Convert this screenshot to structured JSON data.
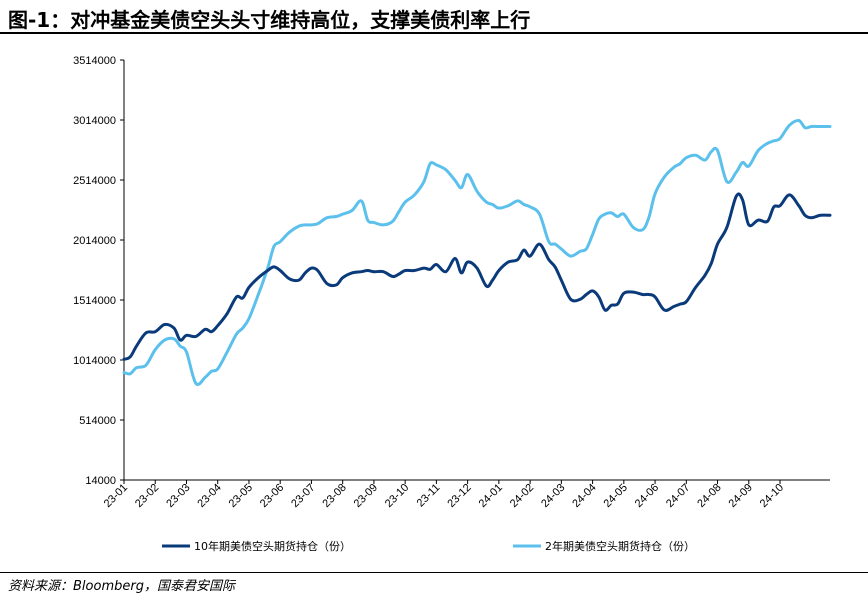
{
  "title": "图-1：对冲基金美债空头头寸维持高位，支撑美债利率上行",
  "source": "资料来源：Bloomberg，国泰君安国际",
  "chart_data": {
    "type": "line",
    "title": "图-1：对冲基金美债空头头寸维持高位，支撑美债利率上行",
    "ylim": [
      14000,
      3514000
    ],
    "yticks": [
      14000,
      514000,
      1014000,
      1514000,
      2014000,
      2514000,
      3014000,
      3514000
    ],
    "categories": [
      "23-01",
      "23-02",
      "23-03",
      "23-04",
      "23-05",
      "23-06",
      "23-07",
      "23-08",
      "23-09",
      "23-10",
      "23-11",
      "23-12",
      "24-01",
      "24-02",
      "24-03",
      "24-04",
      "24-05",
      "24-06",
      "24-07",
      "24-08",
      "24-09",
      "24-10"
    ],
    "x_end": 22.6,
    "grid": false,
    "legend": "bottom",
    "series": [
      {
        "name": "10年期美债空头期货持仓（份）",
        "color": "#0a3a7a",
        "x": [
          0,
          0.2,
          0.4,
          0.7,
          1,
          1.3,
          1.6,
          1.8,
          2,
          2.3,
          2.6,
          2.8,
          3,
          3.3,
          3.6,
          3.8,
          4,
          4.3,
          4.6,
          4.8,
          5,
          5.3,
          5.6,
          5.8,
          6,
          6.2,
          6.5,
          6.8,
          7,
          7.3,
          7.6,
          7.8,
          8,
          8.3,
          8.6,
          8.8,
          9,
          9.3,
          9.6,
          9.8,
          10,
          10.3,
          10.6,
          10.8,
          11,
          11.3,
          11.6,
          11.8,
          12,
          12.3,
          12.6,
          12.8,
          13,
          13.3,
          13.6,
          13.8,
          14,
          14.3,
          14.6,
          14.8,
          15,
          15.2,
          15.4,
          15.6,
          15.8,
          16,
          16.3,
          16.6,
          16.8,
          17,
          17.3,
          17.6,
          17.8,
          18,
          18.3,
          18.6,
          18.8,
          19,
          19.3,
          19.6,
          19.8,
          20,
          20.3,
          20.6,
          20.8,
          21,
          21.3,
          21.6,
          21.8,
          22,
          22.3,
          22.6
        ],
        "values": [
          1020000,
          1040000,
          1130000,
          1240000,
          1250000,
          1310000,
          1280000,
          1180000,
          1220000,
          1210000,
          1270000,
          1250000,
          1300000,
          1400000,
          1540000,
          1530000,
          1620000,
          1700000,
          1760000,
          1790000,
          1760000,
          1690000,
          1680000,
          1740000,
          1780000,
          1760000,
          1650000,
          1640000,
          1700000,
          1740000,
          1750000,
          1760000,
          1750000,
          1750000,
          1710000,
          1730000,
          1760000,
          1760000,
          1780000,
          1770000,
          1810000,
          1750000,
          1860000,
          1740000,
          1830000,
          1780000,
          1630000,
          1680000,
          1760000,
          1830000,
          1850000,
          1930000,
          1880000,
          1980000,
          1850000,
          1790000,
          1680000,
          1520000,
          1520000,
          1560000,
          1590000,
          1540000,
          1430000,
          1470000,
          1480000,
          1570000,
          1580000,
          1560000,
          1560000,
          1540000,
          1430000,
          1460000,
          1480000,
          1500000,
          1620000,
          1720000,
          1820000,
          1980000,
          2120000,
          2380000,
          2350000,
          2140000,
          2180000,
          2170000,
          2290000,
          2300000,
          2390000,
          2300000,
          2220000,
          2200000,
          2220000,
          2220000
        ]
      },
      {
        "name": "2年期美债空头期货持仓（份）",
        "color": "#5bc0eb",
        "x": [
          0,
          0.2,
          0.4,
          0.7,
          1,
          1.3,
          1.6,
          1.8,
          2,
          2.3,
          2.6,
          2.8,
          3,
          3.3,
          3.6,
          3.8,
          4,
          4.3,
          4.6,
          4.8,
          5,
          5.3,
          5.6,
          5.8,
          6,
          6.2,
          6.5,
          6.8,
          7,
          7.3,
          7.6,
          7.8,
          8,
          8.3,
          8.6,
          8.8,
          9,
          9.3,
          9.6,
          9.8,
          10,
          10.3,
          10.6,
          10.8,
          11,
          11.3,
          11.6,
          11.8,
          12,
          12.3,
          12.6,
          12.8,
          13,
          13.3,
          13.6,
          13.8,
          14,
          14.3,
          14.6,
          14.8,
          15,
          15.2,
          15.4,
          15.6,
          15.8,
          16,
          16.3,
          16.6,
          16.8,
          17,
          17.3,
          17.6,
          17.8,
          18,
          18.3,
          18.6,
          18.8,
          19,
          19.3,
          19.6,
          19.8,
          20,
          20.3,
          20.6,
          20.8,
          21,
          21.3,
          21.6,
          21.8,
          22,
          22.3,
          22.6
        ],
        "values": [
          910000,
          900000,
          950000,
          970000,
          1100000,
          1180000,
          1190000,
          1130000,
          1080000,
          820000,
          870000,
          920000,
          940000,
          1080000,
          1230000,
          1280000,
          1360000,
          1560000,
          1780000,
          1960000,
          2000000,
          2080000,
          2130000,
          2140000,
          2140000,
          2150000,
          2200000,
          2210000,
          2230000,
          2260000,
          2340000,
          2180000,
          2160000,
          2140000,
          2170000,
          2250000,
          2330000,
          2390000,
          2500000,
          2650000,
          2640000,
          2600000,
          2510000,
          2450000,
          2560000,
          2420000,
          2330000,
          2310000,
          2280000,
          2300000,
          2340000,
          2310000,
          2290000,
          2230000,
          2000000,
          1980000,
          1940000,
          1880000,
          1920000,
          1940000,
          2060000,
          2190000,
          2230000,
          2240000,
          2210000,
          2230000,
          2120000,
          2100000,
          2200000,
          2400000,
          2540000,
          2620000,
          2650000,
          2700000,
          2720000,
          2680000,
          2750000,
          2760000,
          2500000,
          2580000,
          2660000,
          2630000,
          2760000,
          2820000,
          2840000,
          2860000,
          2970000,
          3010000,
          2950000,
          2960000,
          2960000,
          2960000
        ]
      }
    ]
  }
}
